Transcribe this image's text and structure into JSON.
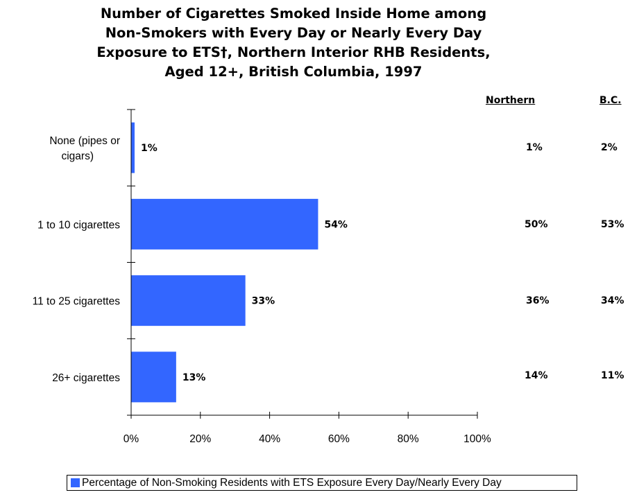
{
  "chart_data": {
    "type": "bar",
    "orientation": "horizontal",
    "title": "Number of Cigarettes Smoked Inside Home among Non-Smokers with Every Day or Nearly Every Day Exposure to ETS†, Northern Interior RHB Residents, Aged 12+, British Columbia, 1997",
    "categories": [
      "None (pipes or cigars)",
      "1 to 10 cigarettes",
      "11 to 25 cigarettes",
      "26+ cigarettes"
    ],
    "series": [
      {
        "name": "Percentage of Non-Smoking Residents with ETS Exposure Every Day/Nearly Every Day",
        "values": [
          1,
          54,
          33,
          13
        ],
        "labels": [
          "1%",
          "54%",
          "33%",
          "13%"
        ],
        "color": "#3366ff"
      }
    ],
    "xlim": [
      0,
      100
    ],
    "xticks": [
      "0%",
      "20%",
      "40%",
      "60%",
      "80%",
      "100%"
    ],
    "xlabel": "",
    "ylabel": "",
    "grid": false,
    "legend_position": "bottom",
    "comparison_table": {
      "headers": [
        "Northern",
        "B.C."
      ],
      "rows": [
        [
          "1%",
          "2%"
        ],
        [
          "50%",
          "53%"
        ],
        [
          "36%",
          "34%"
        ],
        [
          "14%",
          "11%"
        ]
      ]
    }
  }
}
